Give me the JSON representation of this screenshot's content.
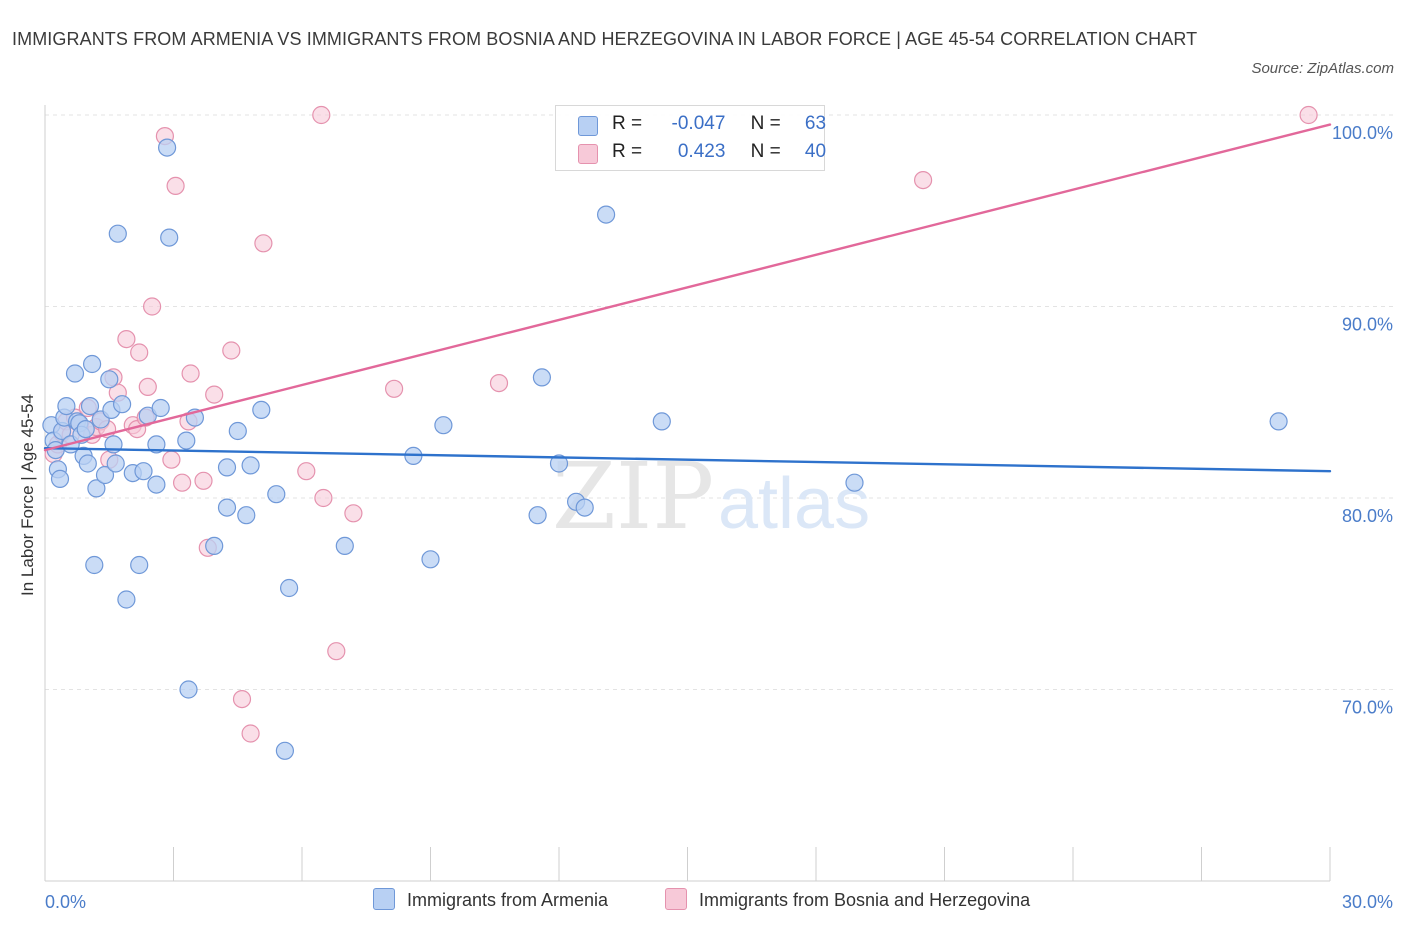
{
  "title": "IMMIGRANTS FROM ARMENIA VS IMMIGRANTS FROM BOSNIA AND HERZEGOVINA IN LABOR FORCE | AGE 45-54 CORRELATION CHART",
  "source": "Source: ZipAtlas.com",
  "watermark": {
    "zip": "ZIP",
    "atlas": "atlas"
  },
  "legend": {
    "rows": [
      {
        "r_label": "R =",
        "r_value": "-0.047",
        "n_label": "N =",
        "n_value": "63"
      },
      {
        "r_label": "R =",
        "r_value": "0.423",
        "n_label": "N =",
        "n_value": "40"
      }
    ]
  },
  "bottom_legend": {
    "armenia": "Immigrants from Armenia",
    "bosnia": "Immigrants from Bosnia and Herzegovina"
  },
  "colors": {
    "armenia_fill": "#b8d0f3",
    "armenia_stroke": "#6f98d8",
    "armenia_line": "#2e72cc",
    "bosnia_fill": "#f7c9d8",
    "bosnia_stroke": "#e592ae",
    "bosnia_line": "#e2689a",
    "tick_label": "#4a7cc9"
  },
  "chart_data": {
    "type": "scatter",
    "title": "IMMIGRANTS FROM ARMENIA VS IMMIGRANTS FROM BOSNIA AND HERZEGOVINA IN LABOR FORCE | AGE 45-54 CORRELATION CHART",
    "xlabel": "",
    "ylabel": "In Labor Force | Age 45-54",
    "xlim": [
      0,
      30
    ],
    "ylim": [
      60,
      100
    ],
    "x_tick_labels": [
      "0.0%",
      "30.0%"
    ],
    "y_ticks": [
      70,
      80,
      90,
      100
    ],
    "y_tick_labels": [
      "70.0%",
      "80.0%",
      "90.0%",
      "100.0%"
    ],
    "series": [
      {
        "name": "Immigrants from Armenia",
        "R": -0.047,
        "N": 63,
        "trend": {
          "x": [
            0,
            30
          ],
          "y": [
            82.6,
            81.4
          ]
        },
        "points": [
          [
            0.15,
            83.8
          ],
          [
            0.2,
            83.0
          ],
          [
            0.25,
            82.5
          ],
          [
            0.3,
            81.5
          ],
          [
            0.35,
            81.0
          ],
          [
            0.4,
            83.5
          ],
          [
            0.45,
            84.2
          ],
          [
            0.5,
            84.8
          ],
          [
            0.6,
            82.8
          ],
          [
            0.7,
            86.5
          ],
          [
            0.75,
            84.0
          ],
          [
            0.8,
            83.9
          ],
          [
            0.85,
            83.3
          ],
          [
            0.9,
            82.2
          ],
          [
            0.95,
            83.6
          ],
          [
            1.0,
            81.8
          ],
          [
            1.05,
            84.8
          ],
          [
            1.1,
            87.0
          ],
          [
            1.15,
            76.5
          ],
          [
            1.2,
            80.5
          ],
          [
            1.3,
            84.1
          ],
          [
            1.4,
            81.2
          ],
          [
            1.5,
            86.2
          ],
          [
            1.55,
            84.6
          ],
          [
            1.6,
            82.8
          ],
          [
            1.65,
            81.8
          ],
          [
            1.7,
            93.8
          ],
          [
            1.8,
            84.9
          ],
          [
            1.9,
            74.7
          ],
          [
            2.05,
            81.3
          ],
          [
            2.2,
            76.5
          ],
          [
            2.3,
            81.4
          ],
          [
            2.4,
            84.3
          ],
          [
            2.6,
            80.7
          ],
          [
            2.7,
            84.7
          ],
          [
            2.6,
            82.8
          ],
          [
            2.85,
            98.3
          ],
          [
            2.9,
            93.6
          ],
          [
            3.3,
            83.0
          ],
          [
            3.5,
            84.2
          ],
          [
            3.35,
            70.0
          ],
          [
            3.95,
            77.5
          ],
          [
            4.25,
            81.6
          ],
          [
            4.25,
            79.5
          ],
          [
            4.5,
            83.5
          ],
          [
            4.7,
            79.1
          ],
          [
            4.8,
            81.7
          ],
          [
            5.05,
            84.6
          ],
          [
            5.4,
            80.2
          ],
          [
            5.7,
            75.3
          ],
          [
            5.6,
            66.8
          ],
          [
            7.0,
            77.5
          ],
          [
            8.6,
            82.2
          ],
          [
            9.0,
            76.8
          ],
          [
            9.3,
            83.8
          ],
          [
            11.5,
            79.1
          ],
          [
            11.6,
            86.3
          ],
          [
            12.0,
            81.8
          ],
          [
            12.4,
            79.8
          ],
          [
            12.6,
            79.5
          ],
          [
            13.1,
            94.8
          ],
          [
            14.4,
            84.0
          ],
          [
            18.9,
            80.8
          ],
          [
            28.8,
            84.0
          ]
        ]
      },
      {
        "name": "Immigrants from Bosnia and Herzegovina",
        "R": 0.423,
        "N": 40,
        "trend": {
          "x": [
            0,
            30
          ],
          "y": [
            82.5,
            99.5
          ]
        },
        "points": [
          [
            0.2,
            82.3
          ],
          [
            0.3,
            82.8
          ],
          [
            0.4,
            83.4
          ],
          [
            0.5,
            84.0
          ],
          [
            0.6,
            83.3
          ],
          [
            0.7,
            84.2
          ],
          [
            0.8,
            83.9
          ],
          [
            1.0,
            84.7
          ],
          [
            1.1,
            83.3
          ],
          [
            1.2,
            83.7
          ],
          [
            1.3,
            84.0
          ],
          [
            1.45,
            83.6
          ],
          [
            1.5,
            82.0
          ],
          [
            1.6,
            86.3
          ],
          [
            1.7,
            85.5
          ],
          [
            1.9,
            88.3
          ],
          [
            2.05,
            83.8
          ],
          [
            2.15,
            83.6
          ],
          [
            2.2,
            87.6
          ],
          [
            2.35,
            84.2
          ],
          [
            2.4,
            85.8
          ],
          [
            2.5,
            90.0
          ],
          [
            2.8,
            98.9
          ],
          [
            2.95,
            82.0
          ],
          [
            3.05,
            96.3
          ],
          [
            3.2,
            80.8
          ],
          [
            3.35,
            84.0
          ],
          [
            3.4,
            86.5
          ],
          [
            3.7,
            80.9
          ],
          [
            3.8,
            77.4
          ],
          [
            3.95,
            85.4
          ],
          [
            4.35,
            87.7
          ],
          [
            4.6,
            69.5
          ],
          [
            4.8,
            67.7
          ],
          [
            5.1,
            93.3
          ],
          [
            6.1,
            81.4
          ],
          [
            6.5,
            80.0
          ],
          [
            6.45,
            100.0
          ],
          [
            6.8,
            72.0
          ],
          [
            7.2,
            79.2
          ],
          [
            8.15,
            85.7
          ],
          [
            10.6,
            86.0
          ],
          [
            20.5,
            96.6
          ],
          [
            29.5,
            100.0
          ]
        ]
      }
    ]
  }
}
